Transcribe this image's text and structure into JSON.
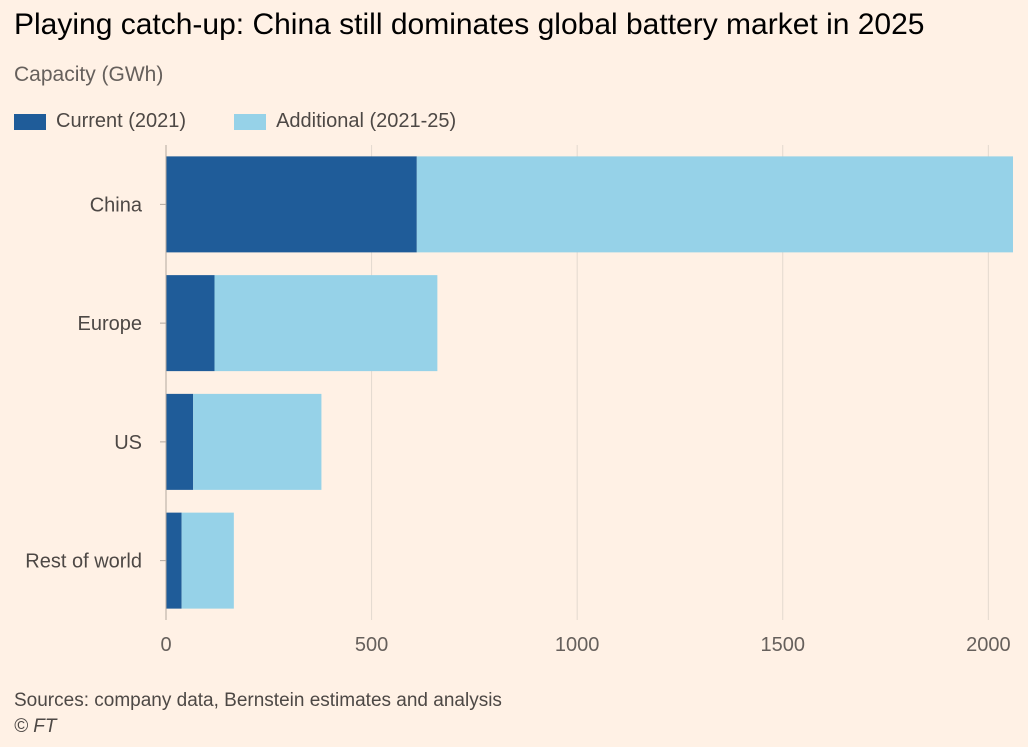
{
  "header": {
    "title": "Playing catch-up: China still dominates global battery market in 2025",
    "subtitle": "Capacity (GWh)"
  },
  "colors": {
    "current": "#1F5C99",
    "additional": "#96D2E8",
    "grid": "#E3D9CF",
    "background": "#FFF1E5"
  },
  "chart_data": {
    "type": "bar",
    "orientation": "horizontal",
    "stacked": true,
    "title": "Playing catch-up: China still dominates global battery market in 2025",
    "subtitle": "Capacity (GWh)",
    "categories": [
      "China",
      "Europe",
      "US",
      "Rest of world"
    ],
    "series": [
      {
        "name": "Current (2021)",
        "values": [
          610,
          118,
          66,
          38
        ]
      },
      {
        "name": "Additional (2021-25)",
        "values": [
          1450,
          542,
          312,
          127
        ]
      }
    ],
    "xlim": [
      0,
      2060
    ],
    "xticks": [
      "0",
      "500",
      "1000",
      "1500",
      "2000"
    ],
    "xtick_values": [
      0,
      500,
      1000,
      1500,
      2000
    ],
    "grid": true,
    "legend_position": "top-left"
  },
  "footer": {
    "source": "Sources: company data, Bernstein estimates and analysis",
    "copyright": "© FT"
  }
}
